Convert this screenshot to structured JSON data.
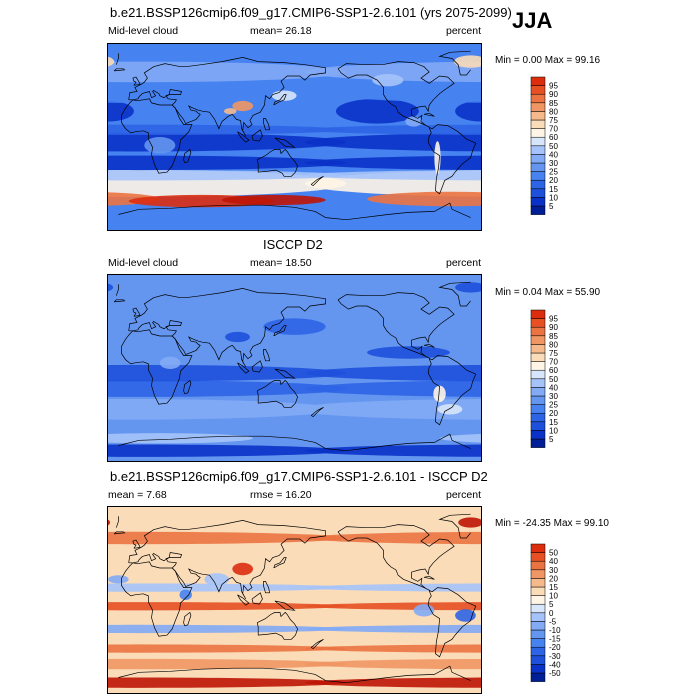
{
  "season": "JJA",
  "colors": {
    "abs_scale": [
      "#001e96",
      "#0a32c8",
      "#1e50dc",
      "#2d64e6",
      "#4682f0",
      "#6496f0",
      "#82aaf5",
      "#a5c3fa",
      "#d7e6fa",
      "#fff5e6",
      "#fadcb9",
      "#f5b98c",
      "#f09664",
      "#eb7341",
      "#e65023",
      "#dc2d0f",
      "#be1405",
      "#8c0a00"
    ],
    "diff_scale": [
      "#001e96",
      "#0a32c8",
      "#1e50dc",
      "#2d64e6",
      "#4682f0",
      "#6496f0",
      "#82aaf5",
      "#a5c3fa",
      "#d7e6fa",
      "#fff5e6",
      "#fadcb9",
      "#f5b98c",
      "#f09664",
      "#eb7341",
      "#e65023",
      "#dc2d0f",
      "#be1405",
      "#8c0a00"
    ],
    "coastline": "#000000"
  },
  "panels": [
    {
      "title": "b.e21.BSSP126cmip6.f09_g17.CMIP6-SSP1-2.6.101 (yrs 2075-2099)",
      "left_label": "Mid-level cloud",
      "center_label": "mean=  26.18",
      "right_label": "percent",
      "stats": "Min =   0.00 Max =  99.16",
      "style": "model"
    },
    {
      "title": "ISCCP D2",
      "left_label": "Mid-level cloud",
      "center_label": "mean=  18.50",
      "right_label": "percent",
      "stats": "Min =   0.04 Max =  55.90",
      "style": "obs"
    },
    {
      "title": "b.e21.BSSP126cmip6.f09_g17.CMIP6-SSP1-2.6.101 - ISCCP D2",
      "left_label": "mean =   7.68",
      "center_label": "rmse =  16.20",
      "right_label": "percent",
      "stats": "Min = -24.35 Max =  99.10",
      "style": "diff"
    }
  ],
  "chart_data": [
    {
      "type": "heatmap",
      "title": "b.e21.BSSP126cmip6.f09_g17.CMIP6-SSP1-2.6.101 (yrs 2075-2099)",
      "variable": "Mid-level cloud",
      "units": "percent",
      "mean": 26.18,
      "min": 0.0,
      "max": 99.16,
      "colorbar_levels": [
        5,
        10,
        15,
        20,
        25,
        30,
        40,
        50,
        60,
        70,
        75,
        80,
        85,
        90,
        95
      ],
      "projection": "cylindrical equidistant, global"
    },
    {
      "type": "heatmap",
      "title": "ISCCP D2",
      "variable": "Mid-level cloud",
      "units": "percent",
      "mean": 18.5,
      "min": 0.04,
      "max": 55.9,
      "colorbar_levels": [
        5,
        10,
        15,
        20,
        25,
        30,
        40,
        50,
        60,
        70,
        75,
        80,
        85,
        90,
        95
      ],
      "projection": "cylindrical equidistant, global"
    },
    {
      "type": "heatmap",
      "title": "b.e21.BSSP126cmip6.f09_g17.CMIP6-SSP1-2.6.101 - ISCCP D2",
      "units": "percent",
      "mean": 7.68,
      "rmse": 16.2,
      "min": -24.35,
      "max": 99.1,
      "colorbar_levels": [
        -50,
        -40,
        -30,
        -20,
        -15,
        -10,
        -5,
        0,
        5,
        10,
        15,
        20,
        30,
        40,
        50
      ],
      "projection": "cylindrical equidistant, global"
    }
  ]
}
